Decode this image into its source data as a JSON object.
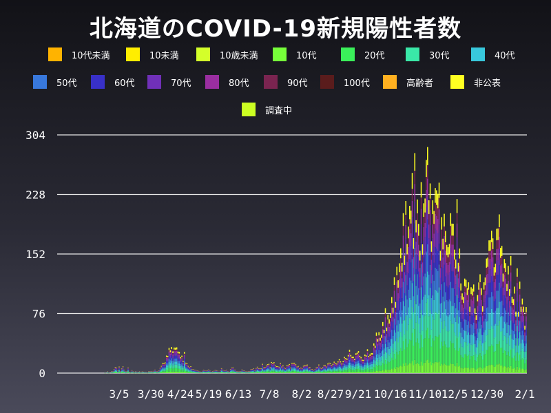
{
  "chart_data": {
    "type": "bar",
    "stacked": true,
    "title": "北海道のCOVID-19新規陽性者数",
    "xlabel": "",
    "ylabel": "",
    "ylim": [
      0,
      304
    ],
    "yticks": [
      0,
      76,
      152,
      228,
      304
    ],
    "xtick_labels": [
      "3/5",
      "3/30",
      "4/24",
      "5/19",
      "6/13",
      "7/8",
      "8/2",
      "8/27",
      "9/21",
      "10/16",
      "11/10",
      "12/5",
      "12/30",
      "2/1"
    ],
    "grid": "horizontal",
    "legend_position": "top",
    "period_note": "daily bars from late January to 2/1; daily totals approximated",
    "series": [
      {
        "name": "10代未満",
        "color": "#ffb300"
      },
      {
        "name": "10未満",
        "color": "#ffee00"
      },
      {
        "name": "10歳未満",
        "color": "#d4ff2a"
      },
      {
        "name": "10代",
        "color": "#77ff3a"
      },
      {
        "name": "20代",
        "color": "#3af05a"
      },
      {
        "name": "30代",
        "color": "#3ae8a8"
      },
      {
        "name": "40代",
        "color": "#38c8dc"
      },
      {
        "name": "50代",
        "color": "#3878dc"
      },
      {
        "name": "60代",
        "color": "#3830c8"
      },
      {
        "name": "70代",
        "color": "#7030b8"
      },
      {
        "name": "80代",
        "color": "#9a2ea0"
      },
      {
        "name": "90代",
        "color": "#7a2450"
      },
      {
        "name": "100代",
        "color": "#5a1c1c"
      },
      {
        "name": "高齢者",
        "color": "#ffb020"
      },
      {
        "name": "非公表",
        "color": "#ffff22"
      },
      {
        "name": "調査中",
        "color": "#ccff22"
      }
    ],
    "bar_series_colors": [
      "#77ff3a",
      "#3af05a",
      "#3ae8a8",
      "#38c8dc",
      "#3878dc",
      "#3830c8",
      "#7030b8",
      "#9a2ea0",
      "#7a2450",
      "#ffff22"
    ],
    "daily_totals": [
      [
        0,
        0
      ],
      [
        36,
        0
      ],
      [
        37,
        1
      ],
      [
        38,
        0
      ],
      [
        39,
        2
      ],
      [
        40,
        1
      ],
      [
        41,
        0
      ],
      [
        42,
        3
      ],
      [
        43,
        2
      ],
      [
        44,
        5
      ],
      [
        45,
        8
      ],
      [
        46,
        6
      ],
      [
        47,
        4
      ],
      [
        48,
        7
      ],
      [
        49,
        3
      ],
      [
        50,
        5
      ],
      [
        51,
        9
      ],
      [
        52,
        4
      ],
      [
        53,
        2
      ],
      [
        54,
        3
      ],
      [
        55,
        6
      ],
      [
        56,
        2
      ],
      [
        57,
        1
      ],
      [
        58,
        4
      ],
      [
        59,
        2
      ],
      [
        60,
        1
      ],
      [
        61,
        3
      ],
      [
        62,
        1
      ],
      [
        63,
        2
      ],
      [
        64,
        2
      ],
      [
        65,
        1
      ],
      [
        66,
        2
      ],
      [
        70,
        1
      ],
      [
        72,
        3
      ],
      [
        74,
        2
      ],
      [
        76,
        4
      ],
      [
        78,
        2
      ],
      [
        80,
        6
      ],
      [
        81,
        10
      ],
      [
        82,
        14
      ],
      [
        83,
        12
      ],
      [
        84,
        16
      ],
      [
        85,
        20
      ],
      [
        86,
        25
      ],
      [
        87,
        30
      ],
      [
        88,
        34
      ],
      [
        89,
        36
      ],
      [
        90,
        28
      ],
      [
        91,
        38
      ],
      [
        92,
        30
      ],
      [
        93,
        36
      ],
      [
        94,
        26
      ],
      [
        95,
        32
      ],
      [
        96,
        22
      ],
      [
        97,
        24
      ],
      [
        98,
        18
      ],
      [
        99,
        26
      ],
      [
        100,
        14
      ],
      [
        101,
        12
      ],
      [
        102,
        10
      ],
      [
        103,
        8
      ],
      [
        104,
        10
      ],
      [
        105,
        6
      ],
      [
        106,
        5
      ],
      [
        107,
        4
      ],
      [
        110,
        3
      ],
      [
        112,
        2
      ],
      [
        114,
        4
      ],
      [
        116,
        3
      ],
      [
        118,
        5
      ],
      [
        120,
        2
      ],
      [
        122,
        3
      ],
      [
        124,
        4
      ],
      [
        126,
        2
      ],
      [
        128,
        6
      ],
      [
        130,
        3
      ],
      [
        132,
        4
      ],
      [
        134,
        2
      ],
      [
        136,
        8
      ],
      [
        138,
        5
      ],
      [
        140,
        3
      ],
      [
        142,
        2
      ],
      [
        144,
        4
      ],
      [
        146,
        3
      ],
      [
        148,
        2
      ],
      [
        150,
        3
      ],
      [
        152,
        6
      ],
      [
        154,
        4
      ],
      [
        156,
        8
      ],
      [
        158,
        5
      ],
      [
        160,
        10
      ],
      [
        162,
        7
      ],
      [
        164,
        12
      ],
      [
        166,
        9
      ],
      [
        168,
        15
      ],
      [
        170,
        10
      ],
      [
        172,
        8
      ],
      [
        174,
        11
      ],
      [
        176,
        9
      ],
      [
        178,
        6
      ],
      [
        180,
        12
      ],
      [
        182,
        8
      ],
      [
        184,
        15
      ],
      [
        186,
        11
      ],
      [
        188,
        8
      ],
      [
        190,
        6
      ],
      [
        192,
        9
      ],
      [
        194,
        12
      ],
      [
        196,
        8
      ],
      [
        198,
        6
      ],
      [
        200,
        4
      ],
      [
        202,
        7
      ],
      [
        204,
        10
      ],
      [
        206,
        6
      ],
      [
        208,
        12
      ],
      [
        210,
        9
      ],
      [
        212,
        14
      ],
      [
        214,
        11
      ],
      [
        216,
        16
      ],
      [
        218,
        12
      ],
      [
        220,
        18
      ],
      [
        222,
        14
      ],
      [
        224,
        22
      ],
      [
        226,
        18
      ],
      [
        228,
        30
      ],
      [
        230,
        24
      ],
      [
        232,
        20
      ],
      [
        234,
        28
      ],
      [
        236,
        26
      ],
      [
        238,
        18
      ],
      [
        240,
        22
      ],
      [
        242,
        28
      ],
      [
        244,
        24
      ],
      [
        246,
        30
      ],
      [
        248,
        40
      ],
      [
        250,
        52
      ],
      [
        252,
        48
      ],
      [
        254,
        60
      ],
      [
        256,
        72
      ],
      [
        258,
        68
      ],
      [
        260,
        80
      ],
      [
        262,
        100
      ],
      [
        264,
        110
      ],
      [
        266,
        130
      ],
      [
        268,
        150
      ],
      [
        270,
        175
      ],
      [
        272,
        190
      ],
      [
        274,
        180
      ],
      [
        276,
        232
      ],
      [
        278,
        210
      ],
      [
        279,
        240
      ],
      [
        280,
        225
      ],
      [
        282,
        190
      ],
      [
        283,
        170
      ],
      [
        284,
        215
      ],
      [
        285,
        200
      ],
      [
        286,
        185
      ],
      [
        287,
        265
      ],
      [
        288,
        250
      ],
      [
        289,
        300
      ],
      [
        290,
        235
      ],
      [
        291,
        220
      ],
      [
        292,
        205
      ],
      [
        293,
        190
      ],
      [
        294,
        250
      ],
      [
        295,
        215
      ],
      [
        296,
        255
      ],
      [
        297,
        240
      ],
      [
        298,
        230
      ],
      [
        299,
        190
      ],
      [
        300,
        175
      ],
      [
        301,
        200
      ],
      [
        302,
        185
      ],
      [
        303,
        210
      ],
      [
        304,
        170
      ],
      [
        305,
        160
      ],
      [
        306,
        200
      ],
      [
        307,
        185
      ],
      [
        308,
        215
      ],
      [
        309,
        175
      ],
      [
        310,
        190
      ],
      [
        311,
        150
      ],
      [
        312,
        235
      ],
      [
        313,
        170
      ],
      [
        314,
        150
      ],
      [
        315,
        125
      ],
      [
        316,
        95
      ],
      [
        317,
        110
      ],
      [
        318,
        125
      ],
      [
        319,
        135
      ],
      [
        320,
        130
      ],
      [
        321,
        115
      ],
      [
        322,
        90
      ],
      [
        323,
        105
      ],
      [
        324,
        115
      ],
      [
        325,
        118
      ],
      [
        326,
        100
      ],
      [
        327,
        88
      ],
      [
        328,
        105
      ],
      [
        329,
        120
      ],
      [
        330,
        125
      ],
      [
        331,
        110
      ],
      [
        332,
        90
      ],
      [
        333,
        130
      ],
      [
        334,
        145
      ],
      [
        335,
        165
      ],
      [
        336,
        150
      ],
      [
        337,
        175
      ],
      [
        338,
        165
      ],
      [
        339,
        195
      ],
      [
        340,
        180
      ],
      [
        341,
        160
      ],
      [
        342,
        170
      ],
      [
        343,
        185
      ],
      [
        344,
        200
      ],
      [
        345,
        190
      ],
      [
        346,
        175
      ],
      [
        347,
        160
      ],
      [
        348,
        150
      ],
      [
        349,
        165
      ],
      [
        350,
        140
      ],
      [
        351,
        130
      ],
      [
        352,
        125
      ],
      [
        353,
        120
      ],
      [
        354,
        140
      ],
      [
        355,
        115
      ],
      [
        356,
        100
      ],
      [
        357,
        110
      ],
      [
        358,
        95
      ],
      [
        359,
        120
      ],
      [
        360,
        90
      ],
      [
        361,
        105
      ],
      [
        362,
        100
      ],
      [
        363,
        95
      ],
      [
        364,
        85
      ],
      [
        365,
        70
      ],
      [
        366,
        75
      ]
    ]
  }
}
